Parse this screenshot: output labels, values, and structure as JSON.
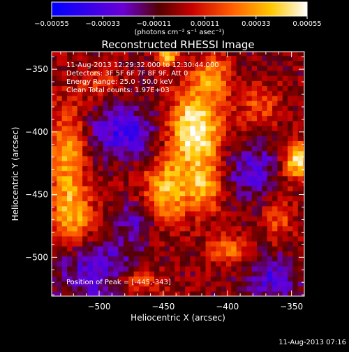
{
  "chart_data": {
    "type": "heatmap",
    "title": "Reconstructed RHESSI Image",
    "xlabel": "Heliocentric X (arcsec)",
    "ylabel": "Heliocentric Y (arcsec)",
    "xlim": [
      -537,
      -340
    ],
    "ylim": [
      -531,
      -336
    ],
    "x_ticks": [
      -500,
      -450,
      -400,
      -350
    ],
    "y_ticks": [
      -500,
      -450,
      -400,
      -350
    ],
    "x_tick_labels": [
      "−500",
      "−450",
      "−400",
      "−350"
    ],
    "y_tick_labels": [
      "−500",
      "−450",
      "−400",
      "−350"
    ],
    "colorbar": {
      "min": -0.00055,
      "max": 0.00055,
      "ticks": [
        -0.00055,
        -0.00033,
        -0.00011,
        0.00011,
        0.00033,
        0.00055
      ],
      "tick_labels": [
        "−0.00055",
        "−0.00033",
        "−0.00011",
        "0.00011",
        "0.00033",
        "0.00055"
      ],
      "units": "(photons cm⁻² s⁻¹ asec⁻²)",
      "colors": [
        "#0000ff",
        "#6a00d4",
        "#550000",
        "#c80000",
        "#ff5a00",
        "#ffc800",
        "#ffffff"
      ]
    },
    "peak": [
      -445,
      -343
    ],
    "sources": [
      {
        "x": -425,
        "y": -398,
        "sx": 14,
        "sy": 22,
        "amp": 1.0
      },
      {
        "x": -412,
        "y": -355,
        "sx": 10,
        "sy": 12,
        "amp": 0.55
      },
      {
        "x": -447,
        "y": -339,
        "sx": 6,
        "sy": 5,
        "amp": 0.8
      },
      {
        "x": -447,
        "y": -447,
        "sx": 13,
        "sy": 18,
        "amp": 0.7
      },
      {
        "x": -418,
        "y": -445,
        "sx": 9,
        "sy": 14,
        "amp": 0.55
      },
      {
        "x": -525,
        "y": -420,
        "sx": 10,
        "sy": 30,
        "amp": 0.6
      },
      {
        "x": -520,
        "y": -468,
        "sx": 12,
        "sy": 16,
        "amp": 0.55
      },
      {
        "x": -345,
        "y": -423,
        "sx": 8,
        "sy": 10,
        "amp": 0.85
      },
      {
        "x": -400,
        "y": -493,
        "sx": 12,
        "sy": 8,
        "amp": 0.45
      },
      {
        "x": -375,
        "y": -380,
        "sx": 12,
        "sy": 12,
        "amp": 0.35
      },
      {
        "x": -470,
        "y": -520,
        "sx": 14,
        "sy": 8,
        "amp": 0.45
      },
      {
        "x": -360,
        "y": -470,
        "sx": 8,
        "sy": 14,
        "amp": 0.35
      },
      {
        "x": -500,
        "y": -360,
        "sx": 10,
        "sy": 8,
        "amp": 0.3
      },
      {
        "x": -480,
        "y": -400,
        "sx": 18,
        "sy": 14,
        "amp": -0.55
      },
      {
        "x": -500,
        "y": -510,
        "sx": 22,
        "sy": 18,
        "amp": -0.45
      },
      {
        "x": -380,
        "y": -430,
        "sx": 14,
        "sy": 16,
        "amp": -0.4
      },
      {
        "x": -365,
        "y": -515,
        "sx": 14,
        "sy": 14,
        "amp": -0.45
      },
      {
        "x": -470,
        "y": -470,
        "sx": 10,
        "sy": 10,
        "amp": -0.35
      }
    ]
  },
  "annotations": {
    "time_range": "11-Aug-2013 12:29:32.000 to 12:30:44.000",
    "detectors": "Detectors: 3F 5F 6F 7F 8F 9F, Att 0",
    "energy": "Energy Range: 25.0 - 50.0 keV",
    "clean": "Clean     Total counts: 1.97E+03",
    "peak": "Position of Peak = [-445,-343]"
  },
  "footer_timestamp": "11-Aug-2013 07:16"
}
